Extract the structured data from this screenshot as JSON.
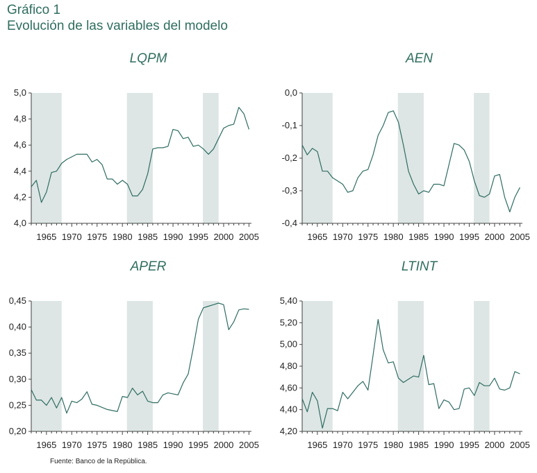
{
  "header": {
    "label": "Gráfico 1",
    "title": "Evolución de las variables del modelo"
  },
  "source": "Fuente: Banco de la República.",
  "colors": {
    "line": "#2e6c62",
    "shade": "#dde6e4",
    "title": "#2f6e5f"
  },
  "chart_data": [
    {
      "type": "line",
      "title": "LQPM",
      "xlabel": "",
      "ylabel": "",
      "xticks": [
        "1965",
        "1970",
        "1975",
        "1980",
        "1985",
        "1990",
        "1995",
        "2000",
        "2005"
      ],
      "yticks": [
        "4,0",
        "4,2",
        "4,4",
        "4,6",
        "4,8",
        "5,0"
      ],
      "ylim": [
        4.0,
        5.0
      ],
      "xlim": [
        1962,
        2005.5
      ],
      "grid": false,
      "shaded_periods": [
        [
          1963,
          1968
        ],
        [
          1982,
          1986
        ],
        [
          1997,
          1999
        ]
      ],
      "x": [
        1962,
        1963,
        1964,
        1965,
        1966,
        1967,
        1968,
        1969,
        1970,
        1971,
        1972,
        1973,
        1974,
        1975,
        1976,
        1977,
        1978,
        1979,
        1980,
        1981,
        1982,
        1983,
        1984,
        1985,
        1986,
        1987,
        1988,
        1989,
        1990,
        1991,
        1992,
        1993,
        1994,
        1995,
        1996,
        1997,
        1998,
        1999,
        2000,
        2001,
        2002,
        2003,
        2004,
        2005
      ],
      "values": [
        4.28,
        4.33,
        4.16,
        4.24,
        4.39,
        4.4,
        4.46,
        4.49,
        4.51,
        4.53,
        4.53,
        4.53,
        4.47,
        4.49,
        4.45,
        4.34,
        4.34,
        4.3,
        4.33,
        4.3,
        4.21,
        4.21,
        4.26,
        4.38,
        4.57,
        4.58,
        4.58,
        4.59,
        4.72,
        4.71,
        4.65,
        4.66,
        4.59,
        4.6,
        4.57,
        4.53,
        4.57,
        4.65,
        4.73,
        4.75,
        4.76,
        4.89,
        4.84,
        4.72
      ]
    },
    {
      "type": "line",
      "title": "AEN",
      "xlabel": "",
      "ylabel": "",
      "xticks": [
        "1965",
        "1970",
        "1975",
        "1980",
        "1985",
        "1990",
        "1995",
        "2000",
        "2005"
      ],
      "yticks": [
        "-0,4",
        "-0,3",
        "-0,2",
        "-0,1",
        "0,0"
      ],
      "ylim": [
        -0.4,
        0.0
      ],
      "xlim": [
        1962,
        2005.5
      ],
      "grid": false,
      "shaded_periods": [
        [
          1963,
          1968
        ],
        [
          1982,
          1986
        ],
        [
          1997,
          1999
        ]
      ],
      "x": [
        1962,
        1963,
        1964,
        1965,
        1966,
        1967,
        1968,
        1969,
        1970,
        1971,
        1972,
        1973,
        1974,
        1975,
        1976,
        1977,
        1978,
        1979,
        1980,
        1981,
        1982,
        1983,
        1984,
        1985,
        1986,
        1987,
        1988,
        1989,
        1990,
        1991,
        1992,
        1993,
        1994,
        1995,
        1996,
        1997,
        1998,
        1999,
        2000,
        2001,
        2002,
        2003,
        2004,
        2005
      ],
      "values": [
        -0.16,
        -0.19,
        -0.17,
        -0.18,
        -0.24,
        -0.24,
        -0.26,
        -0.27,
        -0.28,
        -0.305,
        -0.3,
        -0.26,
        -0.24,
        -0.235,
        -0.19,
        -0.13,
        -0.1,
        -0.06,
        -0.055,
        -0.09,
        -0.16,
        -0.24,
        -0.28,
        -0.31,
        -0.3,
        -0.305,
        -0.28,
        -0.28,
        -0.285,
        -0.22,
        -0.155,
        -0.16,
        -0.175,
        -0.21,
        -0.27,
        -0.315,
        -0.32,
        -0.31,
        -0.255,
        -0.25,
        -0.32,
        -0.365,
        -0.32,
        -0.29
      ]
    },
    {
      "type": "line",
      "title": "APER",
      "xlabel": "",
      "ylabel": "",
      "xticks": [
        "1965",
        "1970",
        "1975",
        "1980",
        "1985",
        "1990",
        "1995",
        "2000",
        "2005"
      ],
      "yticks": [
        "0,20",
        "0,25",
        "0,30",
        "0,35",
        "0,40",
        "0,45"
      ],
      "ylim": [
        0.2,
        0.45
      ],
      "xlim": [
        1962,
        2005.5
      ],
      "grid": false,
      "shaded_periods": [
        [
          1963,
          1968
        ],
        [
          1982,
          1986
        ],
        [
          1997,
          1999
        ]
      ],
      "x": [
        1962,
        1963,
        1964,
        1965,
        1966,
        1967,
        1968,
        1969,
        1970,
        1971,
        1972,
        1973,
        1974,
        1975,
        1976,
        1977,
        1978,
        1979,
        1980,
        1981,
        1982,
        1983,
        1984,
        1985,
        1986,
        1987,
        1988,
        1989,
        1990,
        1991,
        1992,
        1993,
        1994,
        1995,
        1996,
        1997,
        1998,
        1999,
        2000,
        2001,
        2002,
        2003,
        2004,
        2005
      ],
      "values": [
        0.28,
        0.26,
        0.26,
        0.25,
        0.265,
        0.245,
        0.265,
        0.235,
        0.258,
        0.255,
        0.262,
        0.276,
        0.252,
        0.25,
        0.246,
        0.242,
        0.24,
        0.238,
        0.267,
        0.265,
        0.283,
        0.27,
        0.277,
        0.258,
        0.255,
        0.255,
        0.27,
        0.274,
        0.272,
        0.27,
        0.293,
        0.31,
        0.36,
        0.415,
        0.437,
        0.44,
        0.443,
        0.446,
        0.443,
        0.395,
        0.41,
        0.433,
        0.435,
        0.434
      ]
    },
    {
      "type": "line",
      "title": "LTINT",
      "xlabel": "",
      "ylabel": "",
      "xticks": [
        "1965",
        "1970",
        "1975",
        "1980",
        "1985",
        "1990",
        "1995",
        "2000",
        "2005"
      ],
      "yticks": [
        "4,20",
        "4,40",
        "4,60",
        "4,80",
        "5,00",
        "5,20",
        "5,40"
      ],
      "ylim": [
        4.2,
        5.4
      ],
      "xlim": [
        1962,
        2005.5
      ],
      "grid": false,
      "shaded_periods": [
        [
          1963,
          1968
        ],
        [
          1982,
          1986
        ],
        [
          1997,
          1999
        ]
      ],
      "x": [
        1962,
        1963,
        1964,
        1965,
        1966,
        1967,
        1968,
        1969,
        1970,
        1971,
        1972,
        1973,
        1974,
        1975,
        1976,
        1977,
        1978,
        1979,
        1980,
        1981,
        1982,
        1983,
        1984,
        1985,
        1986,
        1987,
        1988,
        1989,
        1990,
        1991,
        1992,
        1993,
        1994,
        1995,
        1996,
        1997,
        1998,
        1999,
        2000,
        2001,
        2002,
        2003,
        2004,
        2005
      ],
      "values": [
        4.5,
        4.38,
        4.56,
        4.48,
        4.23,
        4.41,
        4.41,
        4.39,
        4.56,
        4.5,
        4.56,
        4.62,
        4.66,
        4.58,
        4.9,
        5.23,
        4.95,
        4.83,
        4.84,
        4.69,
        4.65,
        4.68,
        4.71,
        4.7,
        4.9,
        4.63,
        4.64,
        4.41,
        4.49,
        4.47,
        4.4,
        4.41,
        4.59,
        4.6,
        4.53,
        4.65,
        4.62,
        4.62,
        4.69,
        4.59,
        4.58,
        4.6,
        4.75,
        4.73
      ]
    }
  ]
}
